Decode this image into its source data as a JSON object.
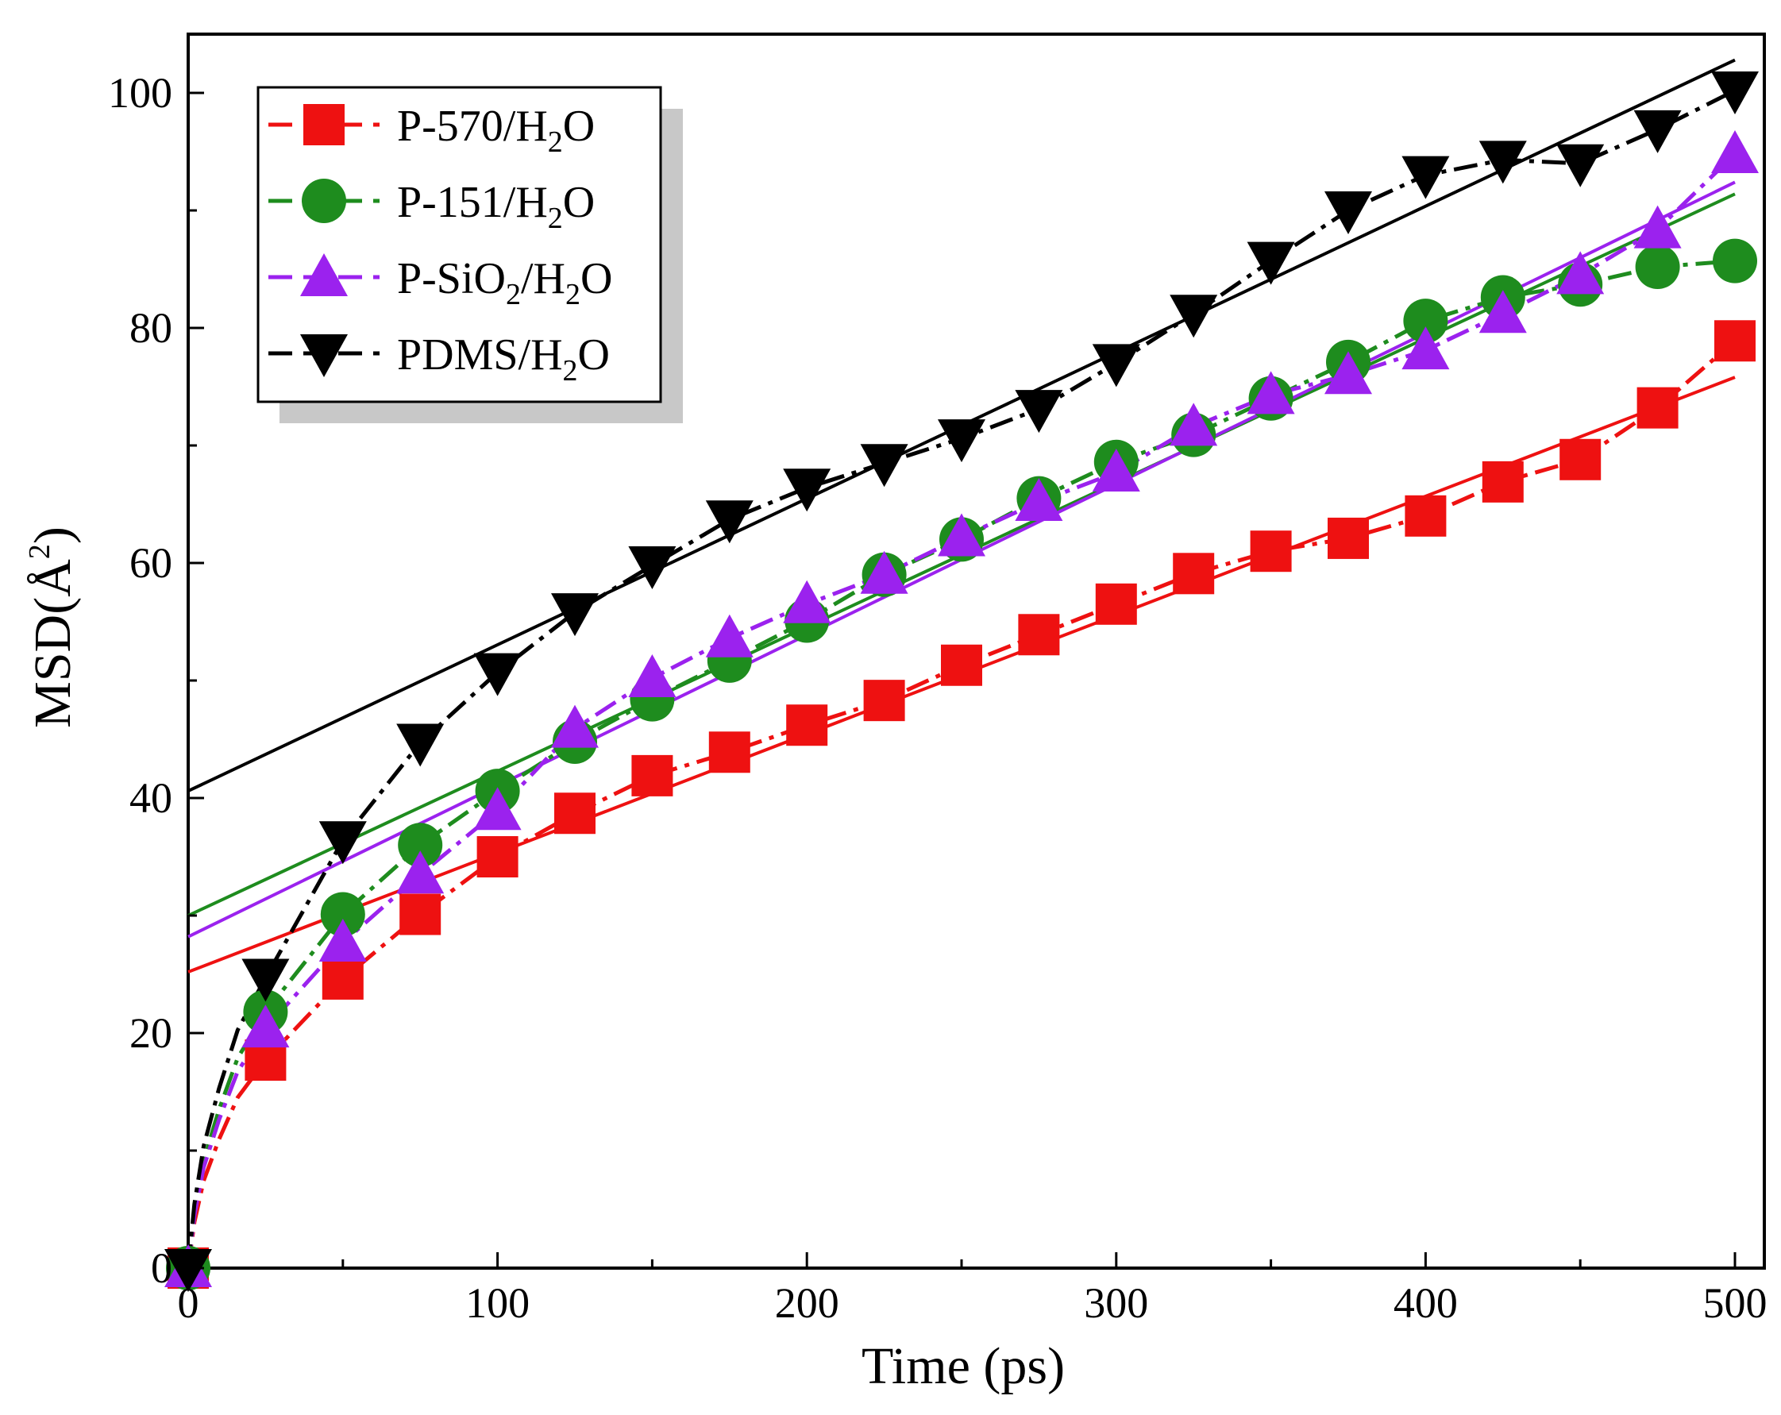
{
  "chart_data": {
    "type": "line",
    "xlabel": "Time (ps)",
    "ylabel": "MSD(Å",
    "ylabel_sup": "2",
    "ylabel_close": ")",
    "xlim": [
      0,
      505
    ],
    "ylim": [
      0,
      105
    ],
    "x_ticks": [
      0,
      100,
      200,
      300,
      400,
      500
    ],
    "x_tick_labels": [
      "0",
      "100",
      "200",
      "300",
      "400",
      "500"
    ],
    "y_ticks": [
      0,
      20,
      40,
      60,
      80,
      100
    ],
    "y_tick_labels": [
      "0",
      "20",
      "40",
      "60",
      "80",
      "100"
    ],
    "x_minor_ticks": [
      50,
      150,
      250,
      350,
      450
    ],
    "y_minor_ticks": [
      10,
      30,
      50,
      70,
      90
    ],
    "x_markers": [
      0,
      25,
      50,
      75,
      100,
      125,
      150,
      175,
      200,
      225,
      250,
      275,
      300,
      325,
      350,
      375,
      400,
      425,
      450,
      475,
      500
    ],
    "series": [
      {
        "name": "P-570/H2O",
        "legend_main": "P-570/H",
        "legend_sub": "2",
        "legend_tail": "O",
        "color": "#ee1111",
        "marker": "square",
        "values": [
          0,
          17.7,
          24.6,
          30.1,
          35.0,
          38.7,
          41.9,
          43.9,
          46.2,
          48.3,
          51.3,
          53.9,
          56.5,
          59.1,
          61.0,
          62.1,
          64.0,
          66.9,
          68.8,
          73.2,
          78.9
        ],
        "fit": {
          "intercept": 25.2,
          "slope": 0.1012
        }
      },
      {
        "name": "P-151/H2O",
        "legend_main": "P-151/H",
        "legend_sub": "2",
        "legend_tail": "O",
        "color": "#1e8c1e",
        "marker": "circle",
        "values": [
          0,
          21.8,
          30.1,
          36.0,
          40.6,
          44.8,
          48.4,
          51.7,
          55.1,
          59.0,
          62.0,
          65.5,
          68.6,
          70.9,
          74.0,
          77.1,
          80.6,
          82.6,
          83.7,
          85.2,
          85.7
        ],
        "fit": {
          "intercept": 30.0,
          "slope": 0.1228
        }
      },
      {
        "name": "P-SiO2/H2O",
        "legend_main": "P-SiO",
        "legend_sub": "2",
        "legend_tail": "/H",
        "legend_sub2": "2",
        "legend_tail2": "O",
        "color": "#9b22ee",
        "marker": "triangle-up",
        "values": [
          0,
          20.4,
          27.7,
          33.5,
          38.9,
          45.9,
          50.2,
          53.6,
          56.5,
          59.0,
          62.2,
          65.2,
          67.7,
          71.6,
          74.3,
          76.0,
          78.1,
          81.2,
          84.5,
          88.4,
          94.8
        ],
        "fit": {
          "intercept": 28.2,
          "slope": 0.1284
        }
      },
      {
        "name": "PDMS/H2O",
        "legend_main": "PDMS/H",
        "legend_sub": "2",
        "legend_tail": "O",
        "color": "#000000",
        "marker": "triangle-down",
        "values": [
          0,
          24.7,
          36.4,
          44.7,
          50.7,
          55.8,
          59.8,
          63.7,
          66.4,
          68.5,
          70.6,
          73.1,
          77.0,
          81.2,
          85.7,
          90.0,
          93.0,
          94.3,
          94.0,
          96.9,
          100.2
        ],
        "fit": {
          "intercept": 40.6,
          "slope": 0.1244
        }
      }
    ]
  }
}
